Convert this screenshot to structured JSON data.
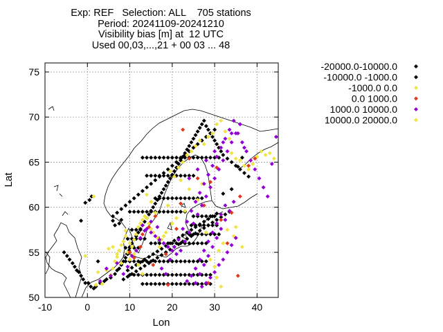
{
  "chart_data": {
    "type": "scatter",
    "title_lines": [
      "Exp: REF   Selection: ALL    705 stations",
      "Period: 20241109-20241210",
      "Visibility bias [m] at  12 UTC",
      "Used 00,03,...,21 + 00 03 ... 48"
    ],
    "xlabel": "Lon",
    "ylabel": "Lat",
    "xlim": [
      -10,
      45
    ],
    "ylim": [
      50,
      76
    ],
    "xticks": [
      -10,
      0,
      10,
      20,
      30,
      40
    ],
    "yticks": [
      50,
      55,
      60,
      65,
      70,
      75
    ],
    "grid": true,
    "legend_position": "right",
    "colors": {
      "black": "#000000",
      "yellow": "#f0e442",
      "red": "#e03a1e",
      "purple": "#9400d3",
      "coast": "#000000"
    },
    "series": [
      {
        "name": "-20000.0-10000.0",
        "color": "black",
        "x": [],
        "y": []
      },
      {
        "name": "-10000.0 -1000.0",
        "color": "black",
        "x": [
          -5.5,
          -4.8,
          -4.2,
          -3.5,
          -3.0,
          -2.5,
          -2.0,
          -1.5,
          -1.0,
          -0.5,
          0.2,
          0.8,
          1.5,
          2.0,
          3.0,
          4.0,
          4.5,
          5.5,
          6.5,
          7.0,
          7.5,
          8.0,
          8.5,
          9.0,
          9.5,
          9.8,
          10.0,
          10.5,
          11.0,
          11.5,
          12.0,
          12.5,
          13.0,
          13.5,
          14.0,
          14.5,
          15.0,
          15.5,
          16.0,
          16.5,
          17.0,
          17.5,
          18.0,
          18.5,
          19.0,
          19.5,
          20.0,
          20.5,
          21.0,
          21.5,
          22.0,
          22.5,
          23.0,
          23.5,
          24.0,
          24.5,
          25.0,
          25.5,
          26.0,
          26.5,
          27.0,
          27.5,
          28.0,
          28.5,
          29.0,
          29.5,
          30.0,
          30.5,
          31.0,
          31.5,
          32.0,
          33.0,
          34.0,
          35.0,
          36.0,
          37.0,
          38.0,
          6.0,
          7.0,
          8.0,
          9.0,
          10.0,
          11.0,
          12.0,
          13.0,
          14.0,
          15.0,
          16.0,
          17.0,
          18.0,
          19.0,
          20.0,
          21.0,
          22.0,
          23.0,
          24.0,
          25.0,
          26.0,
          27.0,
          28.0,
          29.0,
          30.0,
          9.5,
          10.5,
          11.5,
          12.5,
          13.5,
          14.5,
          15.5,
          16.5,
          17.5,
          18.5,
          19.5,
          20.5,
          21.5,
          22.5,
          23.5,
          24.5,
          25.5,
          26.5,
          27.5,
          28.5,
          29.5,
          30.5,
          8.5,
          9.5,
          10.5,
          11.5,
          12.5,
          13.5,
          14.5,
          15.5,
          16.5,
          17.5,
          18.5,
          19.5,
          20.5,
          21.5,
          22.5,
          23.5,
          24.5,
          25.5,
          26.5,
          27.5,
          28.5,
          29.5,
          30.5,
          31.5,
          32.5,
          33.5,
          9.0,
          10.0,
          11.0,
          12.0,
          13.0,
          14.0,
          15.0,
          16.0,
          17.0,
          18.0,
          19.0,
          20.0,
          21.0,
          22.0,
          23.0,
          24.0,
          25.0,
          26.0,
          27.0,
          28.0,
          10.0,
          11.0,
          12.0,
          13.0,
          14.0,
          15.0,
          16.0,
          17.0,
          18.0,
          19.0,
          20.0,
          21.0,
          22.0,
          23.0,
          24.0,
          25.0,
          26.0,
          27.0,
          28.0,
          29.0,
          13.0,
          14.0,
          15.0,
          16.0,
          17.0,
          18.0,
          19.0,
          20.0,
          21.0,
          22.0,
          23.0,
          24.0,
          25.0,
          26.0,
          27.0,
          28.0,
          29.0,
          15.0,
          16.0,
          17.0,
          18.0,
          19.0,
          20.0,
          21.0,
          22.0,
          23.0,
          24.0,
          25.0,
          26.0,
          27.0,
          28.0,
          16.0,
          17.0,
          18.0,
          19.0,
          20.0,
          21.0,
          22.0,
          23.0,
          24.0,
          25.0,
          26.0,
          27.0,
          14.0,
          15.0,
          16.0,
          17.0,
          18.0,
          19.0,
          20.0,
          21.0,
          22.0,
          23.0,
          24.0,
          25.0,
          13.0,
          14.0,
          15.0,
          16.0,
          17.0,
          18.0,
          19.0,
          20.0,
          21.0,
          22.0,
          23.0,
          24.0,
          25.0,
          26.0,
          27.0,
          28.0,
          29.0,
          30.0,
          31.0,
          24.0,
          25.0,
          26.0,
          27.0,
          28.0,
          29.0,
          30.0,
          31.0,
          24.5,
          25.5,
          26.5,
          27.5,
          28.5,
          29.5,
          30.5,
          25.0,
          26.0,
          27.0,
          28.0,
          29.0,
          30.0,
          9.0,
          10.0,
          11.0,
          12.0,
          10.5,
          11.5,
          12.5,
          9.5,
          10.5,
          11.5,
          12.5,
          13.5,
          10.0,
          11.0,
          12.0,
          13.0,
          14.0,
          15.0,
          16.0,
          17.0,
          18.0,
          19.0,
          20.0,
          21.0,
          22.0,
          23.0,
          32.0,
          34.0,
          35.5,
          36.5,
          -0.5,
          0.5,
          1.0,
          -1.5,
          2.5,
          6.0,
          6.5,
          7.5,
          8.0
        ],
        "y": [
          55.0,
          54.6,
          54.2,
          53.8,
          53.4,
          53.0,
          52.8,
          52.4,
          52.0,
          51.6,
          51.6,
          51.2,
          51.0,
          51.2,
          51.6,
          51.8,
          52.0,
          52.2,
          52.6,
          53.0,
          53.2,
          53.6,
          54.0,
          54.4,
          54.8,
          55.2,
          55.6,
          56.0,
          56.4,
          56.8,
          57.2,
          57.6,
          58.0,
          58.4,
          58.8,
          59.2,
          59.6,
          60.0,
          60.4,
          60.8,
          61.2,
          61.6,
          62.0,
          62.4,
          62.8,
          63.2,
          63.6,
          64.0,
          64.4,
          64.8,
          65.2,
          65.6,
          66.0,
          66.4,
          66.8,
          67.2,
          67.6,
          68.0,
          68.4,
          68.8,
          69.2,
          69.6,
          69.0,
          68.6,
          68.2,
          67.8,
          67.4,
          67.0,
          66.6,
          66.2,
          65.8,
          65.4,
          65.0,
          64.6,
          64.2,
          63.8,
          63.4,
          59.0,
          59.4,
          59.8,
          60.2,
          60.6,
          61.0,
          61.4,
          61.8,
          62.2,
          62.6,
          63.0,
          63.4,
          63.8,
          64.2,
          64.6,
          65.0,
          65.4,
          65.8,
          66.2,
          66.6,
          67.0,
          67.4,
          67.8,
          68.2,
          68.6,
          53.0,
          53.3,
          53.6,
          53.9,
          54.2,
          54.5,
          54.8,
          55.1,
          55.4,
          55.7,
          56.0,
          56.3,
          56.6,
          56.9,
          57.2,
          57.5,
          57.8,
          58.1,
          58.4,
          58.7,
          59.0,
          59.3,
          52.0,
          52.3,
          52.6,
          52.9,
          53.2,
          53.5,
          53.8,
          54.1,
          54.4,
          54.7,
          55.0,
          55.3,
          55.6,
          55.9,
          56.2,
          56.5,
          56.8,
          57.1,
          57.4,
          57.7,
          58.0,
          58.3,
          58.6,
          58.9,
          59.2,
          59.5,
          54.0,
          54.0,
          54.0,
          54.0,
          54.0,
          54.0,
          54.0,
          54.0,
          54.0,
          54.0,
          54.0,
          54.0,
          54.0,
          54.0,
          54.0,
          54.0,
          54.0,
          54.0,
          54.0,
          54.0,
          52.5,
          52.5,
          52.5,
          52.5,
          52.5,
          52.5,
          52.5,
          52.5,
          52.5,
          52.5,
          52.5,
          52.5,
          52.5,
          52.5,
          52.5,
          52.5,
          52.5,
          52.5,
          52.5,
          52.5,
          51.5,
          51.5,
          51.5,
          51.5,
          51.5,
          51.5,
          51.5,
          51.5,
          51.5,
          51.5,
          51.5,
          51.5,
          51.5,
          51.5,
          51.5,
          51.5,
          51.5,
          56.0,
          56.0,
          56.0,
          56.0,
          56.0,
          56.0,
          56.0,
          56.0,
          56.0,
          56.0,
          56.0,
          56.0,
          56.0,
          56.0,
          61.0,
          61.0,
          61.0,
          61.0,
          61.0,
          61.0,
          61.0,
          61.0,
          61.0,
          61.0,
          61.0,
          61.0,
          63.5,
          63.5,
          63.5,
          63.5,
          63.5,
          63.5,
          63.5,
          63.5,
          63.5,
          63.5,
          63.5,
          63.5,
          65.5,
          65.5,
          65.5,
          65.5,
          65.5,
          65.5,
          65.5,
          65.5,
          65.5,
          65.5,
          65.5,
          65.5,
          65.5,
          65.5,
          65.5,
          65.5,
          65.5,
          65.5,
          65.5,
          57.0,
          57.0,
          57.0,
          57.0,
          57.0,
          57.0,
          57.0,
          57.0,
          58.0,
          58.0,
          58.0,
          58.0,
          58.0,
          58.0,
          58.0,
          59.0,
          59.0,
          59.0,
          59.0,
          59.0,
          59.0,
          55.5,
          55.5,
          55.5,
          55.5,
          57.5,
          57.5,
          57.5,
          56.5,
          56.5,
          56.5,
          56.5,
          56.5,
          59.5,
          59.5,
          59.5,
          59.5,
          59.5,
          59.5,
          59.5,
          59.5,
          59.5,
          59.5,
          59.5,
          59.5,
          59.5,
          59.5,
          61.5,
          62.0,
          64.5,
          65.5,
          60.5,
          60.8,
          61.2,
          58.5,
          54.0,
          58.5,
          58.0,
          58.2,
          58.6
        ]
      },
      {
        "name": "-1000.0 0.0",
        "color": "yellow",
        "x": [
          1.5,
          3.5,
          4.5,
          5.0,
          5.5,
          6.0,
          6.5,
          7.0,
          7.5,
          8.0,
          8.5,
          9.0,
          9.5,
          10.0,
          10.5,
          11.0,
          11.5,
          12.0,
          12.5,
          13.0,
          13.5,
          14.0,
          14.5,
          15.0,
          15.5,
          16.5,
          17.5,
          18.5,
          19.0,
          20.5,
          21.5,
          22.5,
          23.5,
          24.5,
          25.5,
          26.5,
          27.5,
          28.5,
          29.5,
          30.5,
          31.5,
          32.5,
          33.5,
          34.0,
          35.0,
          36.0,
          37.0,
          38.0,
          39.0,
          40.0,
          41.0,
          42.0,
          43.0,
          44.0,
          33.0,
          34.5,
          36.5,
          26.0,
          27.0,
          24.0,
          22.0,
          19.5,
          13.0,
          12.0,
          11.0,
          10.0,
          9.0,
          8.0,
          7.0,
          6.0,
          20.0,
          21.0,
          23.0,
          28.0,
          29.0,
          30.0,
          31.0,
          32.0,
          31.5,
          30.5,
          17.0,
          18.0,
          16.0,
          15.0,
          14.0,
          2.0,
          2.5,
          -0.5,
          35.0
        ],
        "y": [
          61.2,
          51.5,
          53.0,
          55.4,
          52.5,
          53.2,
          54.0,
          54.5,
          55.2,
          55.8,
          56.2,
          56.8,
          55.0,
          54.2,
          55.6,
          56.4,
          57.0,
          57.8,
          58.2,
          58.6,
          59.0,
          58.8,
          58.2,
          57.6,
          57.2,
          56.6,
          56.4,
          57.2,
          60.2,
          63.4,
          64.4,
          65.0,
          65.8,
          66.2,
          66.8,
          67.4,
          67.0,
          67.8,
          68.2,
          69.2,
          69.6,
          68.4,
          67.6,
          66.0,
          65.4,
          65.2,
          64.6,
          64.2,
          64.8,
          65.6,
          66.2,
          65.8,
          66.0,
          65.4,
          57.5,
          56.8,
          55.6,
          60.8,
          62.6,
          62.0,
          63.0,
          64.0,
          52.6,
          53.6,
          54.8,
          56.0,
          57.4,
          53.8,
          54.8,
          55.6,
          58.2,
          58.8,
          59.6,
          57.2,
          54.2,
          53.4,
          55.2,
          56.0,
          51.2,
          52.2,
          55.6,
          56.8,
          59.4,
          60.6,
          61.4,
          51.4,
          52.8,
          54.6,
          57.8
        ]
      },
      {
        "name": "0.0 1000.0",
        "color": "red",
        "x": [
          10.0,
          11.0,
          12.5,
          13.0,
          14.5,
          15.5,
          18.5,
          21.0,
          22.5,
          24.0,
          26.0,
          27.5,
          29.0,
          30.5,
          33.0,
          34.0,
          36.0,
          38.0,
          39.5,
          19.0,
          28.5,
          31.5,
          35.5,
          22.0,
          16.0
        ],
        "y": [
          55.0,
          54.4,
          55.6,
          57.0,
          57.8,
          53.6,
          54.8,
          57.6,
          68.6,
          65.4,
          63.2,
          60.2,
          62.8,
          64.4,
          56.0,
          59.4,
          61.2,
          64.6,
          65.4,
          51.4,
          51.6,
          58.6,
          52.4,
          60.4,
          59.0
        ]
      },
      {
        "name": "1000.0 10000.0",
        "color": "purple",
        "x": [
          3.0,
          4.5,
          5.5,
          7.0,
          8.5,
          9.5,
          10.5,
          11.5,
          12.5,
          13.5,
          15.0,
          16.5,
          17.5,
          18.5,
          19.5,
          20.5,
          21.5,
          22.5,
          23.5,
          24.5,
          25.5,
          26.5,
          27.5,
          28.5,
          29.5,
          30.5,
          31.5,
          32.5,
          33.5,
          34.5,
          35.5,
          36.5,
          37.5,
          38.5,
          39.5,
          40.5,
          41.5,
          42.5,
          43.5,
          44.5,
          22.0,
          23.0,
          24.0,
          25.0,
          26.0,
          27.0,
          28.0,
          29.0,
          30.0,
          31.0,
          32.0,
          33.0,
          34.0,
          35.0,
          36.0,
          37.0,
          25.5,
          26.5,
          27.5,
          28.5,
          29.5,
          30.5,
          31.5,
          32.5,
          33.5,
          34.5,
          23.5,
          24.5,
          25.5,
          26.5,
          27.5,
          28.5,
          29.5,
          30.5,
          31.5,
          32.5,
          13.0,
          14.0,
          15.0,
          16.0,
          17.0,
          18.0,
          19.0,
          20.0,
          21.0,
          27.0,
          28.0,
          29.0,
          30.0,
          31.0,
          32.0,
          33.0,
          34.0,
          35.0,
          24.0,
          26.0,
          28.0,
          30.0,
          32.0,
          34.0,
          36.0
        ],
        "y": [
          51.8,
          53.2,
          52.4,
          53.8,
          52.6,
          53.4,
          54.6,
          55.2,
          56.6,
          57.4,
          58.4,
          57.8,
          53.2,
          52.6,
          54.2,
          55.6,
          56.4,
          57.6,
          58.4,
          59.6,
          60.6,
          61.6,
          62.6,
          63.6,
          64.6,
          65.6,
          66.6,
          67.6,
          68.6,
          69.6,
          68.2,
          67.2,
          66.2,
          65.2,
          64.2,
          63.2,
          62.2,
          61.2,
          64.8,
          67.8,
          55.2,
          56.2,
          57.2,
          58.2,
          59.2,
          60.2,
          61.2,
          62.2,
          63.2,
          64.2,
          65.2,
          66.2,
          67.2,
          68.2,
          69.2,
          66.6,
          51.6,
          52.6,
          53.6,
          54.6,
          55.6,
          56.6,
          57.6,
          58.6,
          59.6,
          60.6,
          51.8,
          52.4,
          53.2,
          54.2,
          55.2,
          56.2,
          57.2,
          58.2,
          59.2,
          60.2,
          58.0,
          57.6,
          57.2,
          56.8,
          56.4,
          56.0,
          55.6,
          55.2,
          54.8,
          51.2,
          51.6,
          52.2,
          52.8,
          53.6,
          54.2,
          55.0,
          55.8,
          56.6,
          63.2,
          64.2,
          65.2,
          66.2,
          67.2,
          68.2,
          69.2
        ]
      },
      {
        "name": "10000.0 20000.0",
        "color": "yellow",
        "x": [],
        "y": []
      }
    ]
  }
}
